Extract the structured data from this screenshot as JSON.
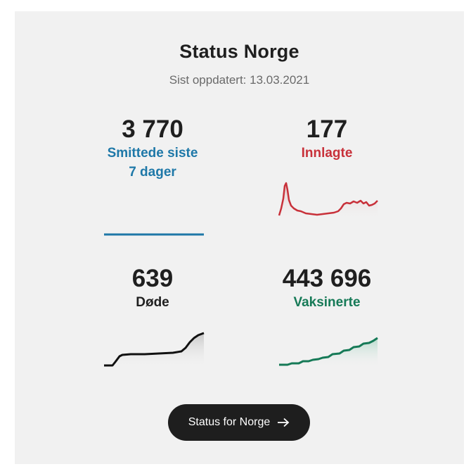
{
  "header": {
    "title": "Status Norge",
    "updated": "Sist oppdatert: 13.03.2021"
  },
  "stats": [
    {
      "value": "3 770",
      "label_line1": "Smittede siste",
      "label_line2": "7 dager",
      "color": "#1e78a8"
    },
    {
      "value": "177",
      "label_line1": "Innlagte",
      "label_line2": "",
      "color": "#c8313a"
    },
    {
      "value": "639",
      "label_line1": "Døde",
      "label_line2": "",
      "color": "#1f1f1f"
    },
    {
      "value": "443 696",
      "label_line1": "Vaksinerte",
      "label_line2": "",
      "color": "#167a57"
    }
  ],
  "cta": {
    "label": "Status for Norge",
    "icon": "arrow-right-icon"
  },
  "colors": {
    "background": "#f1f1f1",
    "button": "#1e1e1e"
  }
}
